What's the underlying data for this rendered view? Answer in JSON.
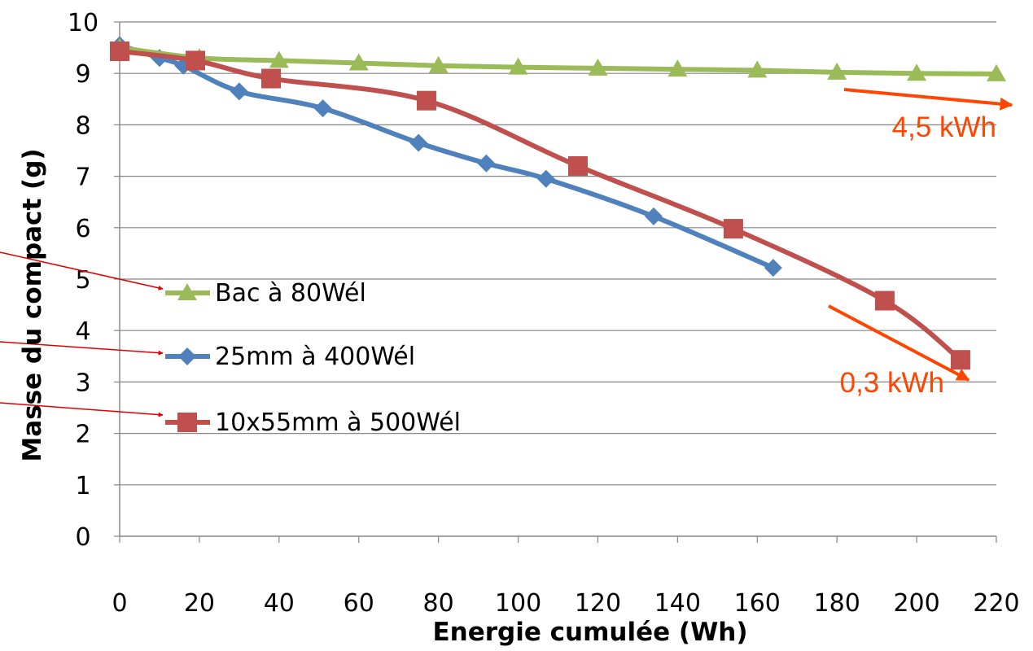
{
  "chart_data": {
    "type": "line",
    "xlabel": "Energie cumulée (Wh)",
    "ylabel": "Masse du compact (g)",
    "xlim": [
      0,
      220
    ],
    "ylim": [
      0,
      10
    ],
    "xticks": [
      "0",
      "20",
      "40",
      "60",
      "80",
      "100",
      "120",
      "140",
      "160",
      "180",
      "200",
      "220"
    ],
    "yticks": [
      "0",
      "1",
      "2",
      "3",
      "4",
      "5",
      "6",
      "7",
      "8",
      "9",
      "10"
    ],
    "grid": "horizontal",
    "legend_position": "center-left",
    "series": [
      {
        "name": "Bac à 80Wél",
        "color": "#9bbb59",
        "marker": "triangle",
        "points": [
          [
            0,
            9.5
          ],
          [
            20,
            9.3
          ],
          [
            40,
            9.25
          ],
          [
            60,
            9.2
          ],
          [
            80,
            9.15
          ],
          [
            100,
            9.12
          ],
          [
            120,
            9.1
          ],
          [
            140,
            9.08
          ],
          [
            160,
            9.06
          ],
          [
            180,
            9.02
          ],
          [
            200,
            9.0
          ],
          [
            220,
            8.99
          ]
        ]
      },
      {
        "name": "25mm à 400Wél",
        "color": "#4f81bd",
        "marker": "diamond",
        "points": [
          [
            0,
            9.55
          ],
          [
            10,
            9.3
          ],
          [
            16,
            9.15
          ],
          [
            30,
            8.65
          ],
          [
            51,
            8.32
          ],
          [
            75,
            7.65
          ],
          [
            92,
            7.25
          ],
          [
            107,
            6.95
          ],
          [
            134,
            6.22
          ],
          [
            164,
            5.22
          ]
        ]
      },
      {
        "name": "10x55mm à 500Wél",
        "color": "#c0504d",
        "marker": "square",
        "points": [
          [
            0,
            9.43
          ],
          [
            19,
            9.25
          ],
          [
            38,
            8.9
          ],
          [
            77,
            8.47
          ],
          [
            115,
            7.2
          ],
          [
            154,
            5.98
          ],
          [
            192,
            4.58
          ],
          [
            211,
            3.43
          ]
        ]
      }
    ],
    "annotations": [
      {
        "text": "4,5 kWh",
        "color": "#ff4500"
      },
      {
        "text": "0,3 kWh",
        "color": "#ff4500"
      }
    ]
  }
}
